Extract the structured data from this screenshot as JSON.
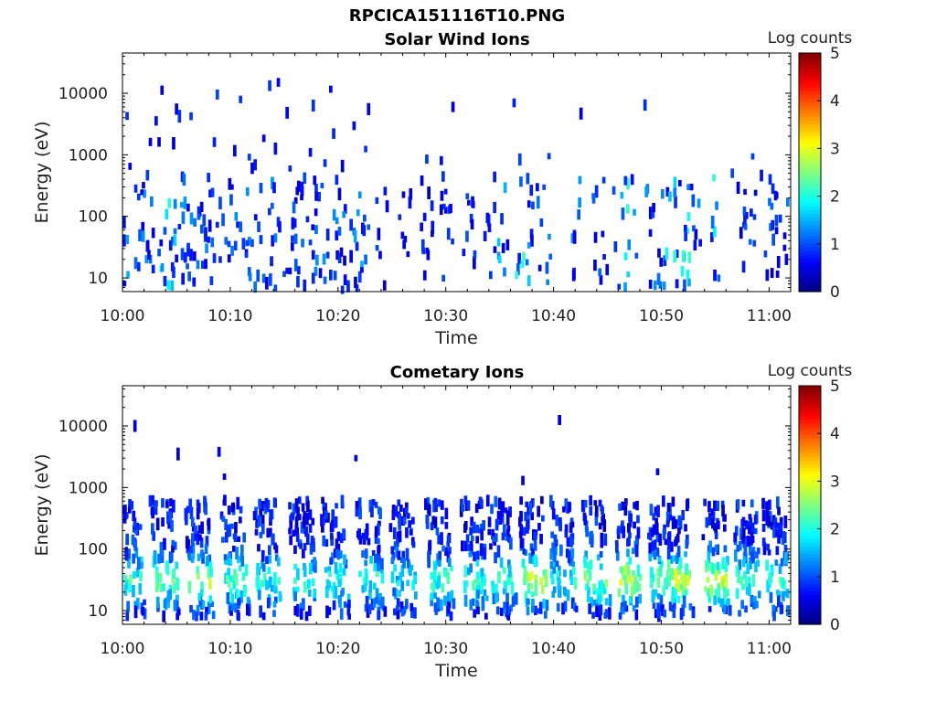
{
  "figure": {
    "title": "RPCICA151116T10.PNG"
  },
  "colorbar": {
    "label": "Log counts",
    "ticks": [
      "0",
      "1",
      "2",
      "3",
      "4",
      "5"
    ],
    "range": [
      0,
      5
    ],
    "colormap": "jet"
  },
  "chart_data": [
    {
      "type": "heatmap",
      "title": "Solar Wind Ions",
      "xlabel": "Time",
      "ylabel": "Energy (eV)",
      "xticks": [
        "10:00",
        "10:10",
        "10:20",
        "10:30",
        "10:40",
        "10:50",
        "11:00"
      ],
      "yticks": [
        "10",
        "100",
        "1000",
        "10000"
      ],
      "xlim": [
        "10:00",
        "11:02"
      ],
      "ylim": [
        6,
        45000
      ],
      "yscale": "log",
      "zlabel": "Log counts",
      "zlim": [
        0,
        5
      ],
      "description_values": {
        "time_min": [
          0,
          2,
          4,
          5,
          6,
          7,
          8,
          10,
          12,
          14,
          16,
          18,
          20,
          22,
          24,
          26,
          28,
          30,
          32,
          34,
          35,
          37,
          38,
          39,
          42,
          44,
          46,
          47,
          49,
          50,
          51,
          52,
          53,
          55,
          58,
          60,
          61
        ],
        "max_log_counts": [
          1.2,
          1.0,
          1.8,
          1.3,
          1.0,
          1.0,
          1.0,
          1.0,
          1.0,
          1.0,
          1.0,
          1.0,
          1.0,
          1.2,
          0.6,
          0.5,
          0.5,
          0.6,
          0.7,
          0.5,
          1.4,
          1.8,
          1.5,
          1.0,
          1.0,
          1.0,
          1.2,
          1.8,
          1.0,
          1.6,
          1.8,
          1.9,
          1.2,
          1.7,
          0.8,
          1.0,
          1.0
        ]
      }
    },
    {
      "type": "heatmap",
      "title": "Cometary Ions",
      "xlabel": "Time",
      "ylabel": "Energy (eV)",
      "xticks": [
        "10:00",
        "10:10",
        "10:20",
        "10:30",
        "10:40",
        "10:50",
        "11:00"
      ],
      "yticks": [
        "10",
        "100",
        "1000",
        "10000"
      ],
      "xlim": [
        "10:00",
        "11:02"
      ],
      "ylim": [
        6,
        45000
      ],
      "yscale": "log",
      "zlabel": "Log counts",
      "zlim": [
        0,
        5
      ],
      "description_values": {
        "burst_time_min": [
          0.3,
          3.5,
          6.7,
          10.0,
          13.0,
          16.3,
          19.3,
          22.6,
          25.6,
          29.0,
          32.2,
          34.8,
          37.7,
          40.4,
          43.5,
          46.5,
          49.6,
          51.2,
          54.6,
          57.5,
          60.2
        ],
        "burst_peak_log_counts": [
          2.0,
          2.2,
          2.5,
          2.0,
          1.8,
          1.8,
          1.8,
          1.8,
          1.6,
          2.0,
          1.9,
          2.0,
          2.6,
          1.8,
          2.2,
          2.6,
          2.2,
          2.8,
          2.8,
          1.9,
          2.1
        ]
      }
    }
  ]
}
